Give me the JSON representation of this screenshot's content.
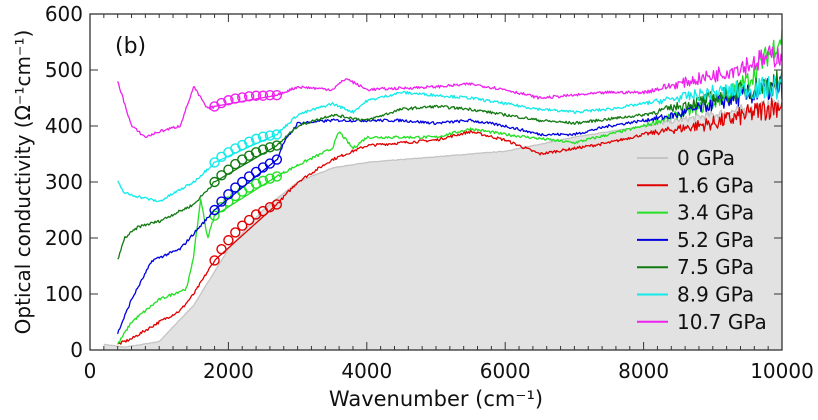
{
  "chart_data": {
    "type": "line",
    "panel_label": "(b)",
    "xlabel": "Wavenumber (cm⁻¹)",
    "ylabel": "Optical conductivity (Ω⁻¹cm⁻¹)",
    "xlim": [
      0,
      10000
    ],
    "ylim": [
      0,
      600
    ],
    "xticks": [
      "0",
      "2000",
      "4000",
      "6000",
      "8000",
      "10000"
    ],
    "yticks": [
      "0",
      "100",
      "200",
      "300",
      "400",
      "500",
      "600"
    ],
    "grid": false,
    "legend_position": "bottom-right",
    "series": [
      {
        "name": "0 GPa",
        "color": "#c4c4c4",
        "filled": true,
        "fill": "#e2e2e2",
        "points": [
          [
            200,
            10
          ],
          [
            500,
            5
          ],
          [
            1000,
            15
          ],
          [
            1500,
            80
          ],
          [
            2000,
            180
          ],
          [
            2500,
            250
          ],
          [
            3000,
            300
          ],
          [
            3500,
            325
          ],
          [
            4000,
            335
          ],
          [
            5000,
            345
          ],
          [
            6000,
            355
          ],
          [
            7000,
            380
          ],
          [
            8000,
            400
          ],
          [
            9000,
            420
          ],
          [
            10000,
            440
          ]
        ],
        "markers": []
      },
      {
        "name": "1.6 GPa",
        "color": "#e00000",
        "filled": false,
        "points": [
          [
            400,
            10
          ],
          [
            600,
            20
          ],
          [
            1000,
            50
          ],
          [
            1300,
            70
          ],
          [
            1500,
            100
          ],
          [
            1800,
            160
          ],
          [
            2700,
            260
          ],
          [
            3000,
            300
          ],
          [
            3500,
            340
          ],
          [
            4000,
            365
          ],
          [
            4500,
            370
          ],
          [
            5000,
            375
          ],
          [
            5500,
            390
          ],
          [
            6000,
            375
          ],
          [
            6500,
            350
          ],
          [
            7000,
            360
          ],
          [
            7500,
            370
          ],
          [
            8000,
            385
          ],
          [
            8500,
            395
          ],
          [
            9000,
            405
          ],
          [
            9500,
            420
          ],
          [
            10000,
            440
          ]
        ],
        "markers": [
          [
            1800,
            160
          ],
          [
            1900,
            180
          ],
          [
            2000,
            196
          ],
          [
            2100,
            210
          ],
          [
            2200,
            222
          ],
          [
            2300,
            232
          ],
          [
            2400,
            242
          ],
          [
            2500,
            248
          ],
          [
            2600,
            255
          ],
          [
            2700,
            260
          ]
        ]
      },
      {
        "name": "3.4 GPa",
        "color": "#22e022",
        "filled": false,
        "points": [
          [
            400,
            10
          ],
          [
            600,
            50
          ],
          [
            1000,
            90
          ],
          [
            1400,
            110
          ],
          [
            1500,
            170
          ],
          [
            1600,
            270
          ],
          [
            1700,
            200
          ],
          [
            1800,
            240
          ],
          [
            2700,
            310
          ],
          [
            3000,
            330
          ],
          [
            3500,
            360
          ],
          [
            3600,
            390
          ],
          [
            3800,
            360
          ],
          [
            4000,
            380
          ],
          [
            5000,
            380
          ],
          [
            5500,
            395
          ],
          [
            6000,
            385
          ],
          [
            7000,
            370
          ],
          [
            8000,
            400
          ],
          [
            9000,
            440
          ],
          [
            9500,
            480
          ],
          [
            10000,
            560
          ]
        ],
        "markers": [
          [
            1800,
            240
          ],
          [
            1900,
            255
          ],
          [
            2000,
            265
          ],
          [
            2100,
            275
          ],
          [
            2200,
            283
          ],
          [
            2300,
            290
          ],
          [
            2400,
            297
          ],
          [
            2500,
            302
          ],
          [
            2600,
            306
          ],
          [
            2700,
            310
          ]
        ]
      },
      {
        "name": "5.2 GPa",
        "color": "#0000e0",
        "filled": false,
        "points": [
          [
            400,
            30
          ],
          [
            600,
            90
          ],
          [
            900,
            160
          ],
          [
            1300,
            180
          ],
          [
            1800,
            250
          ],
          [
            2700,
            340
          ],
          [
            2800,
            370
          ],
          [
            3000,
            405
          ],
          [
            3500,
            410
          ],
          [
            4000,
            410
          ],
          [
            4500,
            410
          ],
          [
            5000,
            405
          ],
          [
            5500,
            410
          ],
          [
            6000,
            400
          ],
          [
            6500,
            385
          ],
          [
            7000,
            385
          ],
          [
            7500,
            400
          ],
          [
            8000,
            410
          ],
          [
            8500,
            420
          ],
          [
            9000,
            440
          ],
          [
            10000,
            470
          ]
        ],
        "markers": [
          [
            1800,
            250
          ],
          [
            1900,
            265
          ],
          [
            2000,
            278
          ],
          [
            2100,
            290
          ],
          [
            2200,
            300
          ],
          [
            2300,
            310
          ],
          [
            2400,
            318
          ],
          [
            2500,
            326
          ],
          [
            2600,
            333
          ],
          [
            2700,
            340
          ]
        ]
      },
      {
        "name": "7.5 GPa",
        "color": "#127a12",
        "filled": false,
        "points": [
          [
            400,
            160
          ],
          [
            500,
            200
          ],
          [
            700,
            220
          ],
          [
            1000,
            230
          ],
          [
            1500,
            260
          ],
          [
            1800,
            300
          ],
          [
            2700,
            365
          ],
          [
            3000,
            400
          ],
          [
            3500,
            420
          ],
          [
            4000,
            410
          ],
          [
            4500,
            430
          ],
          [
            5000,
            435
          ],
          [
            5500,
            430
          ],
          [
            6000,
            420
          ],
          [
            6500,
            410
          ],
          [
            7000,
            405
          ],
          [
            8000,
            420
          ],
          [
            9000,
            450
          ],
          [
            10000,
            480
          ]
        ],
        "markers": [
          [
            1800,
            300
          ],
          [
            1900,
            312
          ],
          [
            2000,
            322
          ],
          [
            2100,
            332
          ],
          [
            2200,
            340
          ],
          [
            2300,
            347
          ],
          [
            2400,
            353
          ],
          [
            2500,
            358
          ],
          [
            2600,
            362
          ],
          [
            2700,
            365
          ]
        ]
      },
      {
        "name": "8.9 GPa",
        "color": "#12eaea",
        "filled": false,
        "points": [
          [
            400,
            300
          ],
          [
            500,
            280
          ],
          [
            1000,
            265
          ],
          [
            1500,
            300
          ],
          [
            1800,
            335
          ],
          [
            2700,
            385
          ],
          [
            3000,
            420
          ],
          [
            3500,
            440
          ],
          [
            3800,
            425
          ],
          [
            4000,
            445
          ],
          [
            4500,
            460
          ],
          [
            5000,
            455
          ],
          [
            5500,
            450
          ],
          [
            6000,
            440
          ],
          [
            6500,
            430
          ],
          [
            7000,
            425
          ],
          [
            7500,
            430
          ],
          [
            8000,
            440
          ],
          [
            9000,
            460
          ],
          [
            10000,
            470
          ]
        ],
        "markers": [
          [
            1800,
            335
          ],
          [
            1900,
            345
          ],
          [
            2000,
            353
          ],
          [
            2100,
            360
          ],
          [
            2200,
            366
          ],
          [
            2300,
            372
          ],
          [
            2400,
            377
          ],
          [
            2500,
            381
          ],
          [
            2600,
            383
          ],
          [
            2700,
            385
          ]
        ]
      },
      {
        "name": "10.7 GPa",
        "color": "#ee22ee",
        "filled": false,
        "points": [
          [
            400,
            480
          ],
          [
            600,
            400
          ],
          [
            800,
            380
          ],
          [
            1000,
            390
          ],
          [
            1300,
            400
          ],
          [
            1500,
            470
          ],
          [
            1700,
            430
          ],
          [
            1800,
            435
          ],
          [
            2700,
            455
          ],
          [
            3000,
            470
          ],
          [
            3500,
            465
          ],
          [
            3700,
            485
          ],
          [
            4000,
            465
          ],
          [
            5000,
            470
          ],
          [
            5500,
            475
          ],
          [
            6000,
            465
          ],
          [
            6500,
            450
          ],
          [
            7000,
            455
          ],
          [
            7500,
            460
          ],
          [
            8000,
            460
          ],
          [
            9000,
            490
          ],
          [
            10000,
            530
          ]
        ],
        "markers": [
          [
            1800,
            435
          ],
          [
            1900,
            441
          ],
          [
            2000,
            446
          ],
          [
            2100,
            449
          ],
          [
            2200,
            451
          ],
          [
            2300,
            453
          ],
          [
            2400,
            454
          ],
          [
            2500,
            454
          ],
          [
            2600,
            455
          ],
          [
            2700,
            455
          ]
        ]
      }
    ]
  }
}
